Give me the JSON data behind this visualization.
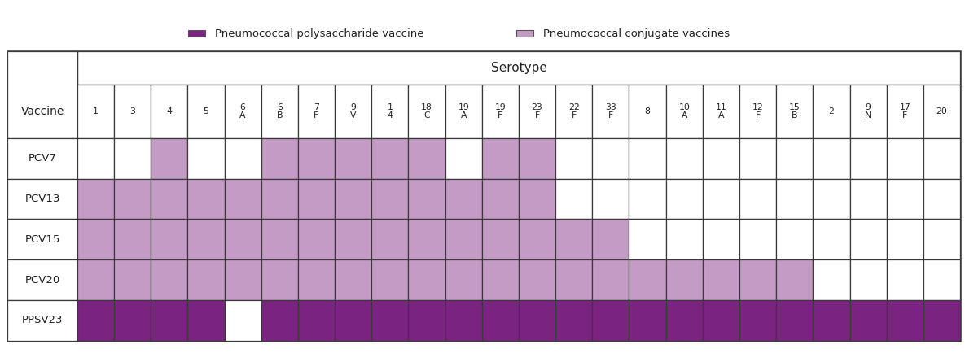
{
  "serotypes_display": [
    "1",
    "3",
    "4",
    "5",
    "6\nA",
    "6\nB",
    "7\nF",
    "9\nV",
    "1\n4",
    "18\nC",
    "19\nA",
    "19\nF",
    "23\nF",
    "22\nF",
    "33\nF",
    "8",
    "10\nA",
    "11\nA",
    "12\nF",
    "15\nB",
    "2",
    "9\nN",
    "17\nF",
    "20"
  ],
  "vaccines": [
    "PCV7",
    "PCV13",
    "PCV15",
    "PCV20",
    "PPSV23"
  ],
  "color_conjugate": "#C49BC4",
  "color_polysaccharide": "#7B2381",
  "color_white": "#FFFFFF",
  "color_border": "#3a3a3a",
  "legend_polysaccharide_label": "Pneumococcal polysaccharide vaccine",
  "legend_conjugate_label": "Pneumococcal conjugate vaccines",
  "title_serotype": "Serotype",
  "vaccine_col_label": "Vaccine",
  "vaccine_fills": {
    "PCV7": [
      0,
      0,
      1,
      0,
      0,
      1,
      1,
      1,
      1,
      1,
      0,
      1,
      1,
      0,
      0,
      0,
      0,
      0,
      0,
      0,
      0,
      0,
      0,
      0
    ],
    "PCV13": [
      1,
      1,
      1,
      1,
      1,
      1,
      1,
      1,
      1,
      1,
      1,
      1,
      1,
      0,
      0,
      0,
      0,
      0,
      0,
      0,
      0,
      0,
      0,
      0
    ],
    "PCV15": [
      1,
      1,
      1,
      1,
      1,
      1,
      1,
      1,
      1,
      1,
      1,
      1,
      1,
      1,
      1,
      0,
      0,
      0,
      0,
      0,
      0,
      0,
      0,
      0
    ],
    "PCV20": [
      1,
      1,
      1,
      1,
      1,
      1,
      1,
      1,
      1,
      1,
      1,
      1,
      1,
      1,
      1,
      1,
      1,
      1,
      1,
      1,
      0,
      0,
      0,
      0
    ],
    "PPSV23": [
      1,
      1,
      1,
      1,
      0,
      1,
      1,
      1,
      1,
      1,
      1,
      1,
      1,
      1,
      1,
      1,
      1,
      1,
      1,
      1,
      1,
      1,
      1,
      1
    ]
  },
  "vaccine_type": {
    "PCV7": "conjugate",
    "PCV13": "conjugate",
    "PCV15": "conjugate",
    "PCV20": "conjugate",
    "PPSV23": "polysaccharide"
  },
  "figsize": [
    11.85,
    4.34
  ],
  "dpi": 100
}
